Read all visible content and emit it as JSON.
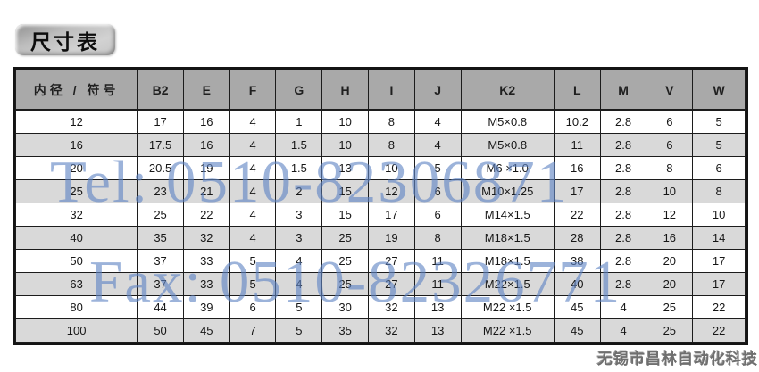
{
  "badge": {
    "label": "尺寸表"
  },
  "watermarks": {
    "tel": "Tel: 0510-82306871",
    "fax": "Fax: 0510-82326771",
    "company": "无锡市昌林自动化科技",
    "blue_color": "#6085c5"
  },
  "colors": {
    "header_bg": "#a9a9a9",
    "alt_row_bg": "#d9d9d9",
    "grid_border": "#1c1c1c",
    "outer_border": "#141414"
  },
  "table": {
    "headers": [
      "内径 / 符号",
      "B2",
      "E",
      "F",
      "G",
      "H",
      "I",
      "J",
      "K2",
      "L",
      "M",
      "V",
      "W"
    ],
    "rows": [
      [
        "12",
        "17",
        "16",
        "4",
        "1",
        "10",
        "8",
        "4",
        "M5×0.8",
        "10.2",
        "2.8",
        "6",
        "5"
      ],
      [
        "16",
        "17.5",
        "16",
        "4",
        "1.5",
        "10",
        "8",
        "4",
        "M5×0.8",
        "11",
        "2.8",
        "6",
        "5"
      ],
      [
        "20",
        "20.5",
        "19",
        "4",
        "1.5",
        "13",
        "10",
        "5",
        "M6 ×1.0",
        "16",
        "2.8",
        "8",
        "6"
      ],
      [
        "25",
        "23",
        "21",
        "4",
        "2",
        "15",
        "12",
        "6",
        "M10×1.25",
        "17",
        "2.8",
        "10",
        "8"
      ],
      [
        "32",
        "25",
        "22",
        "4",
        "3",
        "15",
        "17",
        "6",
        "M14×1.5",
        "22",
        "2.8",
        "12",
        "10"
      ],
      [
        "40",
        "35",
        "32",
        "4",
        "3",
        "25",
        "19",
        "8",
        "M18×1.5",
        "28",
        "2.8",
        "16",
        "14"
      ],
      [
        "50",
        "37",
        "33",
        "5",
        "4",
        "25",
        "27",
        "11",
        "M18×1.5",
        "38",
        "2.8",
        "20",
        "17"
      ],
      [
        "63",
        "37",
        "33",
        "5",
        "4",
        "25",
        "27",
        "11",
        "M22×1.5",
        "40",
        "2.8",
        "20",
        "17"
      ],
      [
        "80",
        "44",
        "39",
        "6",
        "5",
        "30",
        "32",
        "13",
        "M22 ×1.5",
        "45",
        "4",
        "25",
        "22"
      ],
      [
        "100",
        "50",
        "45",
        "7",
        "5",
        "35",
        "32",
        "13",
        "M22 ×1.5",
        "45",
        "4",
        "25",
        "22"
      ]
    ]
  }
}
